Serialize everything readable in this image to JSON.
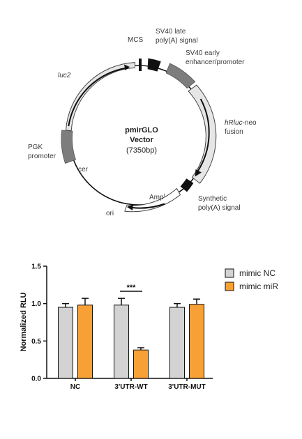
{
  "plasmid": {
    "name": "pmirGLO",
    "name2": "Vector",
    "size": "(7350bp)",
    "features": {
      "mcs": "MCS",
      "sv40_late_1": "SV40 late",
      "sv40_late_2": "poly(A) signal",
      "sv40_early_1": "SV40 early",
      "sv40_early_2": "enhancer/promoter",
      "hrluc_italic": "hRluc",
      "hrluc_rest": "-neo",
      "hrluc_2": "fusion",
      "synth_1": "Synthetic",
      "synth_2": "poly(A) signal",
      "amp": "Amp",
      "amp_sup": "r",
      "ori": "ori",
      "cer": "cer",
      "pgk_1": "PGK",
      "pgk_2": "promoter",
      "luc2": "luc2"
    },
    "colors": {
      "dark": "#111111",
      "grey": "#7d7d7d",
      "light": "#e6e6e6"
    }
  },
  "chart_data": {
    "type": "bar",
    "categories": [
      "NC",
      "3'UTR-WT",
      "3'UTR-MUT"
    ],
    "series": [
      {
        "name": "mimic NC",
        "color": "#d3d3d3",
        "values": [
          0.95,
          0.98,
          0.95
        ],
        "errors": [
          0.05,
          0.09,
          0.05
        ]
      },
      {
        "name": "mimic miR",
        "color": "#f7a035",
        "values": [
          0.98,
          0.38,
          0.99
        ],
        "errors": [
          0.09,
          0.03,
          0.07
        ]
      }
    ],
    "ylabel": "Normalized RLU",
    "ylim": [
      0,
      1.5
    ],
    "yticks": [
      "0.0",
      "0.5",
      "1.0",
      "1.5"
    ],
    "significance": {
      "label": "***",
      "category": "3'UTR-WT"
    },
    "legend_position": "top-right"
  }
}
